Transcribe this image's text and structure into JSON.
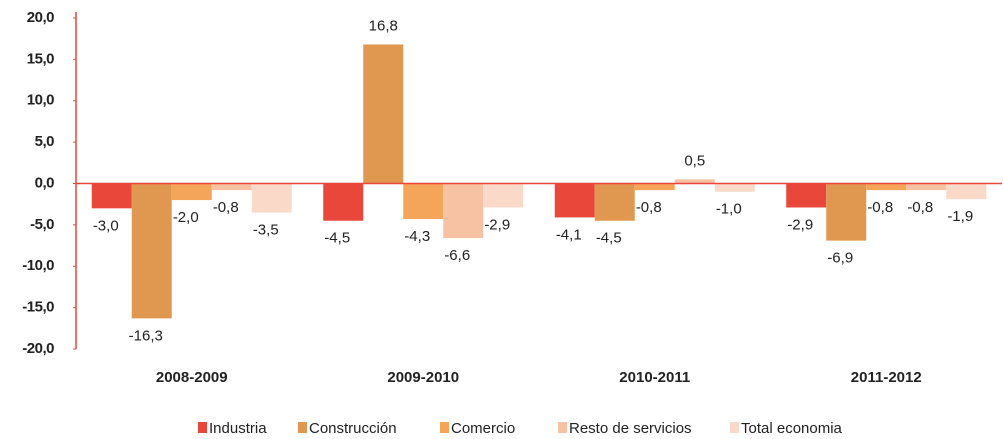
{
  "chart_data": {
    "type": "bar",
    "categories": [
      "2008-2009",
      "2009-2010",
      "2010-2011",
      "2011-2012"
    ],
    "series": [
      {
        "name": "Industria",
        "color": "#e8473a",
        "values": [
          -3.0,
          -4.5,
          -4.1,
          -2.9
        ],
        "value_labels": [
          "-3,0",
          "-4,5",
          "-4,1",
          "-2,9"
        ]
      },
      {
        "name": "Construcción",
        "color": "#e0974f",
        "values": [
          -16.3,
          16.8,
          -4.5,
          -6.9
        ],
        "value_labels": [
          "-16,3",
          "16,8",
          "-4,5",
          "-6,9"
        ]
      },
      {
        "name": "Comercio",
        "color": "#f5a55a",
        "values": [
          -2.0,
          -4.3,
          -0.8,
          -0.8
        ],
        "value_labels": [
          "-2,0",
          "-4,3",
          "-0,8",
          "-0,8"
        ]
      },
      {
        "name": "Resto de servicios",
        "color": "#f7c2a4",
        "values": [
          -0.8,
          -6.6,
          0.5,
          -0.8
        ],
        "value_labels": [
          "-0,8",
          "-6,6",
          "0,5",
          "-0,8"
        ]
      },
      {
        "name": "Total economia",
        "color": "#fbd9c8",
        "values": [
          -3.5,
          -2.9,
          -1.0,
          -1.9
        ],
        "value_labels": [
          "-3,5",
          "-2,9",
          "-1,0",
          "-1,9"
        ]
      }
    ],
    "ylim": [
      -20,
      20
    ],
    "yticks": [
      {
        "value": 20,
        "label": "20,0"
      },
      {
        "value": 15,
        "label": "15,0"
      },
      {
        "value": 10,
        "label": "10,0"
      },
      {
        "value": 5,
        "label": "5,0"
      },
      {
        "value": 0,
        "label": "0,0"
      },
      {
        "value": -5,
        "label": "-5,0"
      },
      {
        "value": -10,
        "label": "-10,0"
      },
      {
        "value": -15,
        "label": "-15,0"
      },
      {
        "value": -20,
        "label": "-20,0"
      }
    ],
    "legend": "bottom"
  }
}
